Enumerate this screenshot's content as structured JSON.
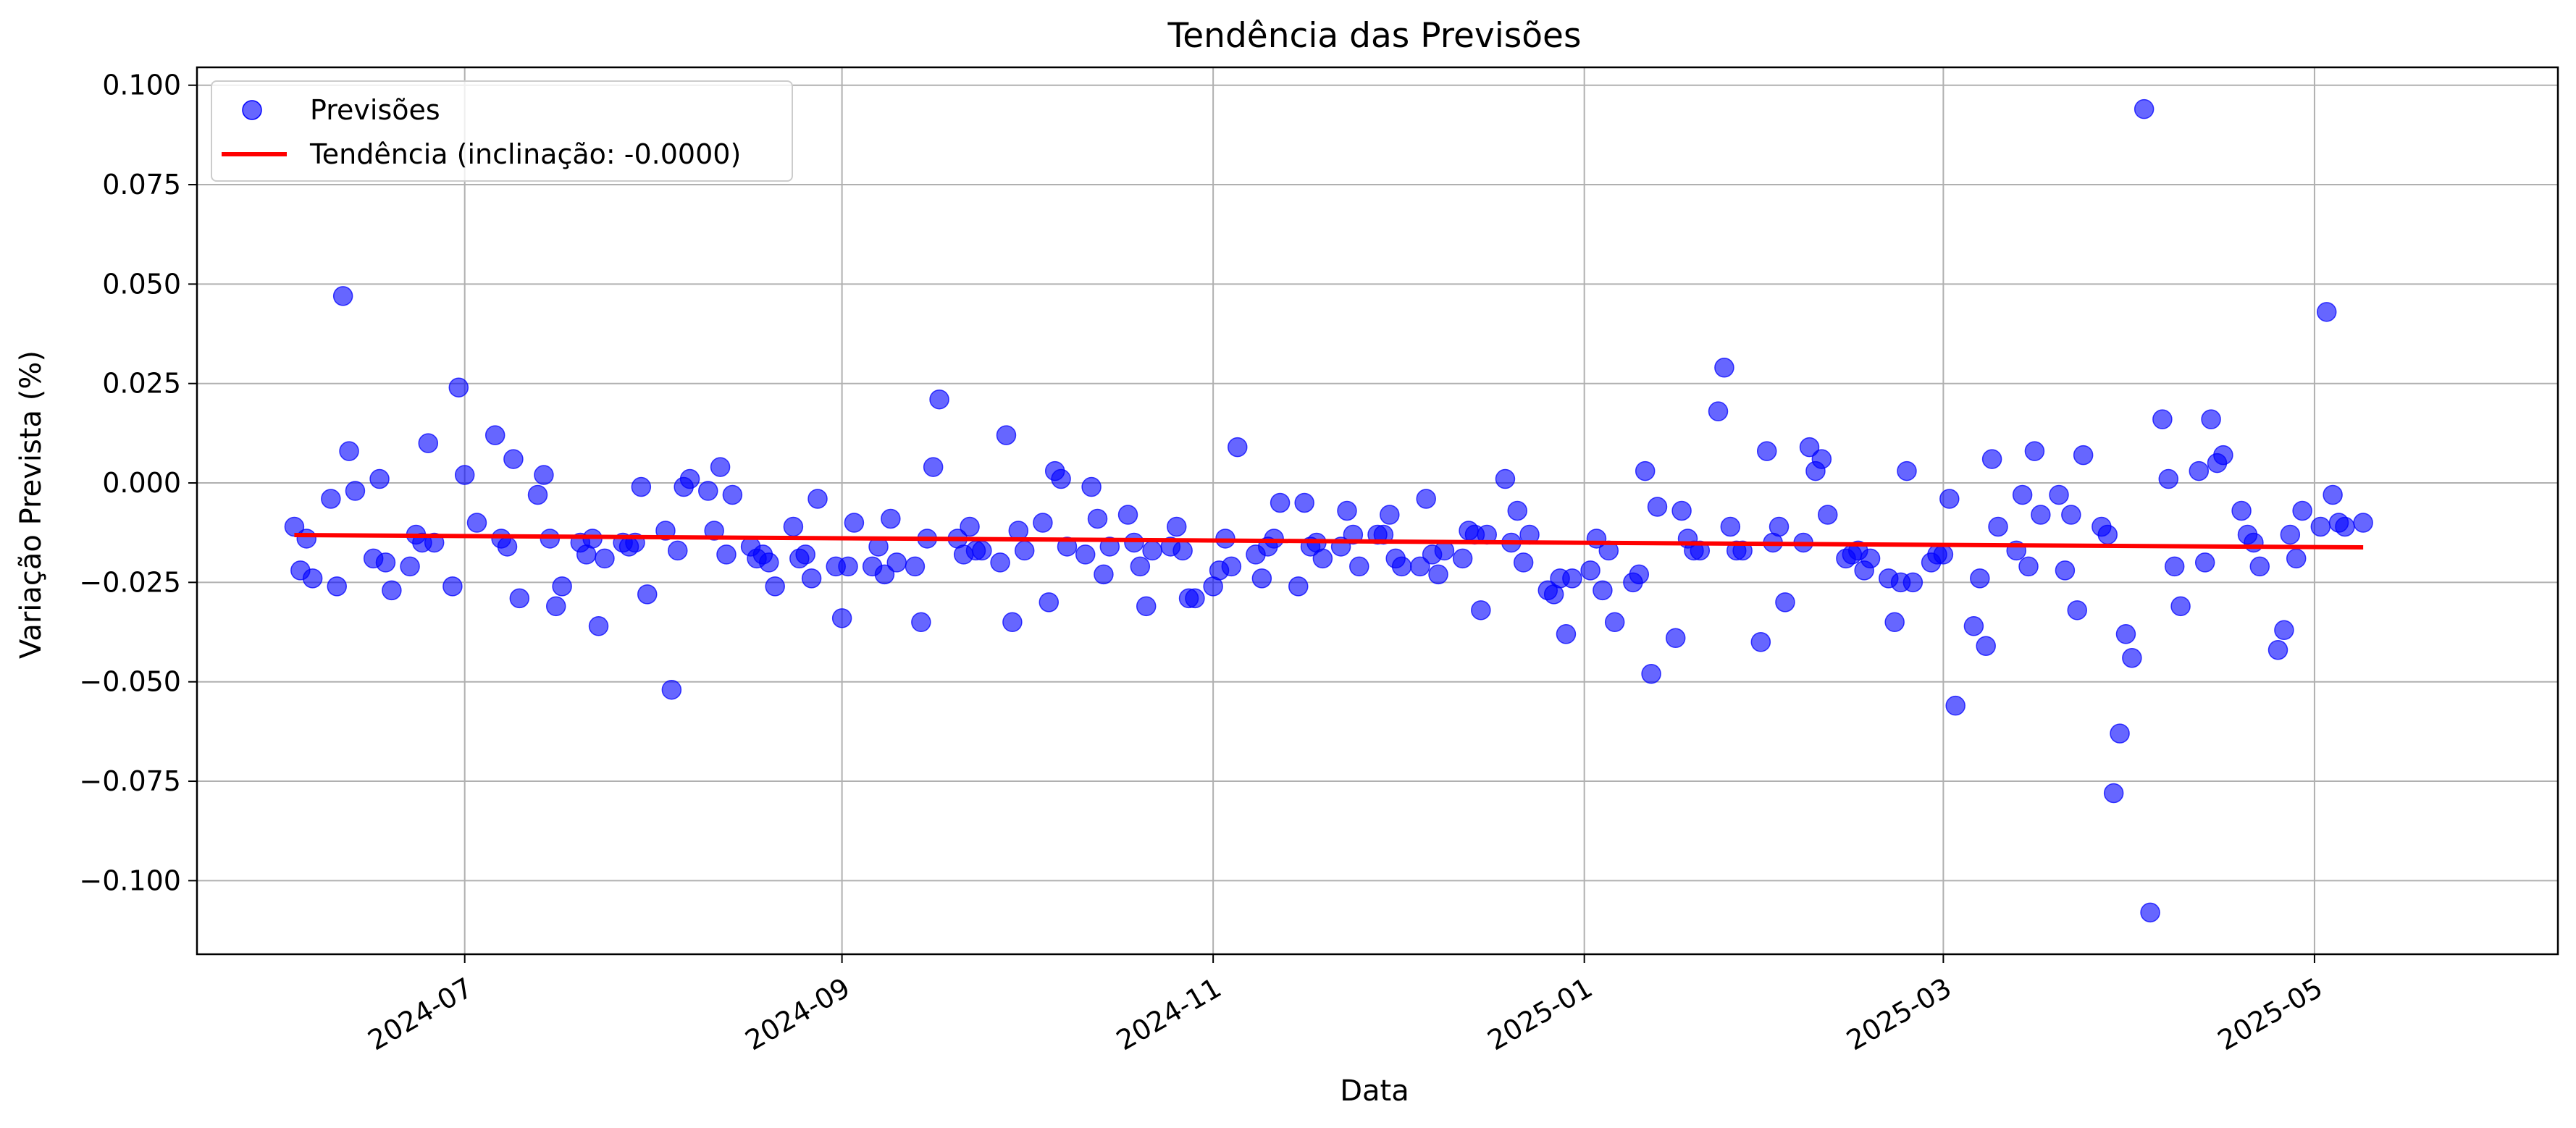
{
  "chart_data": {
    "type": "scatter",
    "title": "Tendência das Previsões",
    "xlabel": "Data",
    "ylabel": "Variação Prevista (%)",
    "xlim": [
      "2024-05-18",
      "2025-06-10"
    ],
    "ylim": [
      -0.1185,
      0.1045
    ],
    "grid": true,
    "legend_position": "upper-left",
    "x_ticks": [
      "2024-07-01",
      "2024-09-01",
      "2024-11-01",
      "2025-01-01",
      "2025-03-01",
      "2025-05-01"
    ],
    "x_tick_labels": [
      "2024-07",
      "2024-09",
      "2024-11",
      "2025-01",
      "2025-03",
      "2025-05"
    ],
    "y_ticks": [
      0.1,
      0.075,
      0.05,
      0.025,
      0.0,
      -0.025,
      -0.05,
      -0.075,
      -0.1
    ],
    "y_tick_labels": [
      "0.100",
      "0.075",
      "0.050",
      "0.025",
      "0.000",
      "−0.025",
      "−0.050",
      "−0.075",
      "−0.100"
    ],
    "colors": {
      "points": "#0000ff",
      "trend": "#ff0000",
      "grid": "#b0b0b0"
    },
    "series": [
      {
        "name": "Previsões",
        "kind": "scatter",
        "points": [
          [
            "2024-06-03",
            -0.011
          ],
          [
            "2024-06-04",
            -0.022
          ],
          [
            "2024-06-05",
            -0.014
          ],
          [
            "2024-06-06",
            -0.024
          ],
          [
            "2024-06-09",
            -0.004
          ],
          [
            "2024-06-10",
            -0.026
          ],
          [
            "2024-06-11",
            0.047
          ],
          [
            "2024-06-12",
            0.008
          ],
          [
            "2024-06-13",
            -0.002
          ],
          [
            "2024-06-16",
            -0.019
          ],
          [
            "2024-06-17",
            0.001
          ],
          [
            "2024-06-18",
            -0.02
          ],
          [
            "2024-06-19",
            -0.027
          ],
          [
            "2024-06-22",
            -0.021
          ],
          [
            "2024-06-23",
            -0.013
          ],
          [
            "2024-06-24",
            -0.015
          ],
          [
            "2024-06-25",
            0.01
          ],
          [
            "2024-06-26",
            -0.015
          ],
          [
            "2024-06-29",
            -0.026
          ],
          [
            "2024-06-30",
            0.024
          ],
          [
            "2024-07-01",
            0.002
          ],
          [
            "2024-07-03",
            -0.01
          ],
          [
            "2024-07-06",
            0.012
          ],
          [
            "2024-07-07",
            -0.014
          ],
          [
            "2024-07-08",
            -0.016
          ],
          [
            "2024-07-09",
            0.006
          ],
          [
            "2024-07-10",
            -0.029
          ],
          [
            "2024-07-13",
            -0.003
          ],
          [
            "2024-07-14",
            0.002
          ],
          [
            "2024-07-15",
            -0.014
          ],
          [
            "2024-07-16",
            -0.031
          ],
          [
            "2024-07-17",
            -0.026
          ],
          [
            "2024-07-20",
            -0.015
          ],
          [
            "2024-07-21",
            -0.018
          ],
          [
            "2024-07-22",
            -0.014
          ],
          [
            "2024-07-23",
            -0.036
          ],
          [
            "2024-07-24",
            -0.019
          ],
          [
            "2024-07-27",
            -0.015
          ],
          [
            "2024-07-28",
            -0.016
          ],
          [
            "2024-07-29",
            -0.015
          ],
          [
            "2024-07-30",
            -0.001
          ],
          [
            "2024-07-31",
            -0.028
          ],
          [
            "2024-08-03",
            -0.012
          ],
          [
            "2024-08-04",
            -0.052
          ],
          [
            "2024-08-05",
            -0.017
          ],
          [
            "2024-08-06",
            -0.001
          ],
          [
            "2024-08-07",
            0.001
          ],
          [
            "2024-08-10",
            -0.002
          ],
          [
            "2024-08-11",
            -0.012
          ],
          [
            "2024-08-12",
            0.004
          ],
          [
            "2024-08-13",
            -0.018
          ],
          [
            "2024-08-14",
            -0.003
          ],
          [
            "2024-08-17",
            -0.016
          ],
          [
            "2024-08-18",
            -0.019
          ],
          [
            "2024-08-19",
            -0.018
          ],
          [
            "2024-08-20",
            -0.02
          ],
          [
            "2024-08-21",
            -0.026
          ],
          [
            "2024-08-24",
            -0.011
          ],
          [
            "2024-08-25",
            -0.019
          ],
          [
            "2024-08-26",
            -0.018
          ],
          [
            "2024-08-27",
            -0.024
          ],
          [
            "2024-08-28",
            -0.004
          ],
          [
            "2024-08-31",
            -0.021
          ],
          [
            "2024-09-01",
            -0.034
          ],
          [
            "2024-09-02",
            -0.021
          ],
          [
            "2024-09-03",
            -0.01
          ],
          [
            "2024-09-06",
            -0.021
          ],
          [
            "2024-09-07",
            -0.016
          ],
          [
            "2024-09-08",
            -0.023
          ],
          [
            "2024-09-09",
            -0.009
          ],
          [
            "2024-09-10",
            -0.02
          ],
          [
            "2024-09-13",
            -0.021
          ],
          [
            "2024-09-14",
            -0.035
          ],
          [
            "2024-09-15",
            -0.014
          ],
          [
            "2024-09-16",
            0.004
          ],
          [
            "2024-09-17",
            0.021
          ],
          [
            "2024-09-20",
            -0.014
          ],
          [
            "2024-09-21",
            -0.018
          ],
          [
            "2024-09-22",
            -0.011
          ],
          [
            "2024-09-23",
            -0.017
          ],
          [
            "2024-09-24",
            -0.017
          ],
          [
            "2024-09-27",
            -0.02
          ],
          [
            "2024-09-28",
            0.012
          ],
          [
            "2024-09-29",
            -0.035
          ],
          [
            "2024-09-30",
            -0.012
          ],
          [
            "2024-10-01",
            -0.017
          ],
          [
            "2024-10-04",
            -0.01
          ],
          [
            "2024-10-05",
            -0.03
          ],
          [
            "2024-10-06",
            0.003
          ],
          [
            "2024-10-07",
            0.001
          ],
          [
            "2024-10-08",
            -0.016
          ],
          [
            "2024-10-11",
            -0.018
          ],
          [
            "2024-10-12",
            -0.001
          ],
          [
            "2024-10-13",
            -0.009
          ],
          [
            "2024-10-14",
            -0.023
          ],
          [
            "2024-10-15",
            -0.016
          ],
          [
            "2024-10-18",
            -0.008
          ],
          [
            "2024-10-19",
            -0.015
          ],
          [
            "2024-10-20",
            -0.021
          ],
          [
            "2024-10-21",
            -0.031
          ],
          [
            "2024-10-22",
            -0.017
          ],
          [
            "2024-10-25",
            -0.016
          ],
          [
            "2024-10-26",
            -0.011
          ],
          [
            "2024-10-27",
            -0.017
          ],
          [
            "2024-10-28",
            -0.029
          ],
          [
            "2024-10-29",
            -0.029
          ],
          [
            "2024-11-01",
            -0.026
          ],
          [
            "2024-11-02",
            -0.022
          ],
          [
            "2024-11-03",
            -0.014
          ],
          [
            "2024-11-04",
            -0.021
          ],
          [
            "2024-11-05",
            0.009
          ],
          [
            "2024-11-08",
            -0.018
          ],
          [
            "2024-11-09",
            -0.024
          ],
          [
            "2024-11-10",
            -0.016
          ],
          [
            "2024-11-11",
            -0.014
          ],
          [
            "2024-11-12",
            -0.005
          ],
          [
            "2024-11-15",
            -0.026
          ],
          [
            "2024-11-16",
            -0.005
          ],
          [
            "2024-11-17",
            -0.016
          ],
          [
            "2024-11-18",
            -0.015
          ],
          [
            "2024-11-19",
            -0.019
          ],
          [
            "2024-11-22",
            -0.016
          ],
          [
            "2024-11-23",
            -0.007
          ],
          [
            "2024-11-24",
            -0.013
          ],
          [
            "2024-11-25",
            -0.021
          ],
          [
            "2024-11-28",
            -0.013
          ],
          [
            "2024-11-29",
            -0.013
          ],
          [
            "2024-11-30",
            -0.008
          ],
          [
            "2024-12-01",
            -0.019
          ],
          [
            "2024-12-02",
            -0.021
          ],
          [
            "2024-12-05",
            -0.021
          ],
          [
            "2024-12-06",
            -0.004
          ],
          [
            "2024-12-07",
            -0.018
          ],
          [
            "2024-12-08",
            -0.023
          ],
          [
            "2024-12-09",
            -0.017
          ],
          [
            "2024-12-12",
            -0.019
          ],
          [
            "2024-12-13",
            -0.012
          ],
          [
            "2024-12-14",
            -0.013
          ],
          [
            "2024-12-15",
            -0.032
          ],
          [
            "2024-12-16",
            -0.013
          ],
          [
            "2024-12-19",
            0.001
          ],
          [
            "2024-12-20",
            -0.015
          ],
          [
            "2024-12-21",
            -0.007
          ],
          [
            "2024-12-22",
            -0.02
          ],
          [
            "2024-12-23",
            -0.013
          ],
          [
            "2024-12-26",
            -0.027
          ],
          [
            "2024-12-27",
            -0.028
          ],
          [
            "2024-12-28",
            -0.024
          ],
          [
            "2024-12-29",
            -0.038
          ],
          [
            "2024-12-30",
            -0.024
          ],
          [
            "2025-01-02",
            -0.022
          ],
          [
            "2025-01-03",
            -0.014
          ],
          [
            "2025-01-04",
            -0.027
          ],
          [
            "2025-01-05",
            -0.017
          ],
          [
            "2025-01-06",
            -0.035
          ],
          [
            "2025-01-09",
            -0.025
          ],
          [
            "2025-01-10",
            -0.023
          ],
          [
            "2025-01-11",
            0.003
          ],
          [
            "2025-01-12",
            -0.048
          ],
          [
            "2025-01-13",
            -0.006
          ],
          [
            "2025-01-16",
            -0.039
          ],
          [
            "2025-01-17",
            -0.007
          ],
          [
            "2025-01-18",
            -0.014
          ],
          [
            "2025-01-19",
            -0.017
          ],
          [
            "2025-01-20",
            -0.017
          ],
          [
            "2025-01-23",
            0.018
          ],
          [
            "2025-01-24",
            0.029
          ],
          [
            "2025-01-25",
            -0.011
          ],
          [
            "2025-01-26",
            -0.017
          ],
          [
            "2025-01-27",
            -0.017
          ],
          [
            "2025-01-30",
            -0.04
          ],
          [
            "2025-01-31",
            0.008
          ],
          [
            "2025-02-01",
            -0.015
          ],
          [
            "2025-02-02",
            -0.011
          ],
          [
            "2025-02-03",
            -0.03
          ],
          [
            "2025-02-06",
            -0.015
          ],
          [
            "2025-02-07",
            0.009
          ],
          [
            "2025-02-08",
            0.003
          ],
          [
            "2025-02-09",
            0.006
          ],
          [
            "2025-02-10",
            -0.008
          ],
          [
            "2025-02-13",
            -0.019
          ],
          [
            "2025-02-14",
            -0.018
          ],
          [
            "2025-02-15",
            -0.017
          ],
          [
            "2025-02-16",
            -0.022
          ],
          [
            "2025-02-17",
            -0.019
          ],
          [
            "2025-02-20",
            -0.024
          ],
          [
            "2025-02-21",
            -0.035
          ],
          [
            "2025-02-22",
            -0.025
          ],
          [
            "2025-02-23",
            0.003
          ],
          [
            "2025-02-24",
            -0.025
          ],
          [
            "2025-02-27",
            -0.02
          ],
          [
            "2025-02-28",
            -0.018
          ],
          [
            "2025-03-01",
            -0.018
          ],
          [
            "2025-03-02",
            -0.004
          ],
          [
            "2025-03-03",
            -0.056
          ],
          [
            "2025-03-06",
            -0.036
          ],
          [
            "2025-03-07",
            -0.024
          ],
          [
            "2025-03-08",
            -0.041
          ],
          [
            "2025-03-09",
            0.006
          ],
          [
            "2025-03-10",
            -0.011
          ],
          [
            "2025-03-13",
            -0.017
          ],
          [
            "2025-03-14",
            -0.003
          ],
          [
            "2025-03-15",
            -0.021
          ],
          [
            "2025-03-16",
            0.008
          ],
          [
            "2025-03-17",
            -0.008
          ],
          [
            "2025-03-20",
            -0.003
          ],
          [
            "2025-03-21",
            -0.022
          ],
          [
            "2025-03-22",
            -0.008
          ],
          [
            "2025-03-23",
            -0.032
          ],
          [
            "2025-03-24",
            0.007
          ],
          [
            "2025-03-27",
            -0.011
          ],
          [
            "2025-03-28",
            -0.013
          ],
          [
            "2025-03-29",
            -0.078
          ],
          [
            "2025-03-30",
            -0.063
          ],
          [
            "2025-03-31",
            -0.038
          ],
          [
            "2025-04-01",
            -0.044
          ],
          [
            "2025-04-03",
            0.094
          ],
          [
            "2025-04-04",
            -0.108
          ],
          [
            "2025-04-06",
            0.016
          ],
          [
            "2025-04-07",
            0.001
          ],
          [
            "2025-04-08",
            -0.021
          ],
          [
            "2025-04-09",
            -0.031
          ],
          [
            "2025-04-12",
            0.003
          ],
          [
            "2025-04-13",
            -0.02
          ],
          [
            "2025-04-14",
            0.016
          ],
          [
            "2025-04-15",
            0.005
          ],
          [
            "2025-04-16",
            0.007
          ],
          [
            "2025-04-19",
            -0.007
          ],
          [
            "2025-04-20",
            -0.013
          ],
          [
            "2025-04-21",
            -0.015
          ],
          [
            "2025-04-22",
            -0.021
          ],
          [
            "2025-04-25",
            -0.042
          ],
          [
            "2025-04-26",
            -0.037
          ],
          [
            "2025-04-27",
            -0.013
          ],
          [
            "2025-04-28",
            -0.019
          ],
          [
            "2025-04-29",
            -0.007
          ],
          [
            "2025-05-02",
            -0.011
          ],
          [
            "2025-05-03",
            0.043
          ],
          [
            "2025-05-04",
            -0.003
          ],
          [
            "2025-05-05",
            -0.01
          ],
          [
            "2025-05-06",
            -0.011
          ],
          [
            "2025-05-09",
            -0.01
          ]
        ]
      },
      {
        "name": "Tendência (inclinação: -0.0000)",
        "kind": "line",
        "points": [
          [
            "2024-06-03",
            -0.0131
          ],
          [
            "2025-05-09",
            -0.0162
          ]
        ]
      }
    ]
  }
}
